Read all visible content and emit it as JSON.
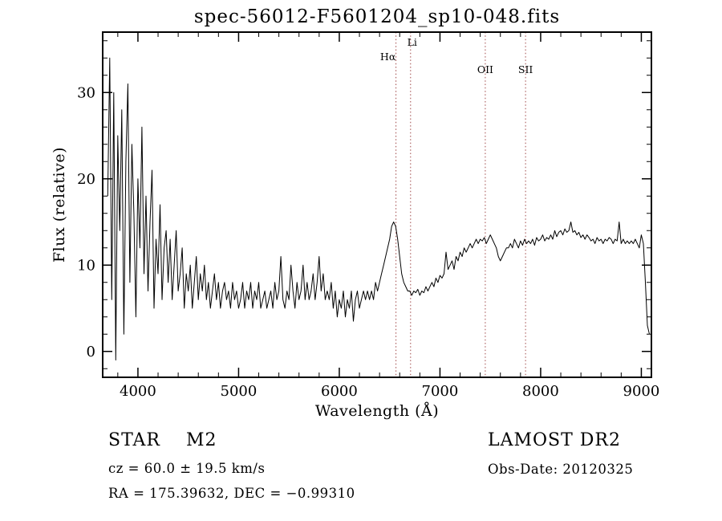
{
  "chart_data": {
    "type": "line",
    "title": "spec-56012-F5601204_sp10-048.fits",
    "xlabel": "Wavelength (Å)",
    "ylabel": "Flux (relative)",
    "xlim": [
      3650,
      9100
    ],
    "ylim": [
      -3,
      37
    ],
    "xticks": [
      4000,
      5000,
      6000,
      7000,
      8000,
      9000
    ],
    "yticks": [
      0,
      10,
      20,
      30
    ],
    "x_minor_step": 200,
    "y_minor_step": 2,
    "grid": false,
    "line_color": "#000000",
    "axis_color": "#000000",
    "reference_line_color": "#a04848",
    "reference_lines": [
      {
        "label": "Hα",
        "wavelength": 6563,
        "level": 2,
        "dx": -10
      },
      {
        "label": "Li",
        "wavelength": 6708,
        "level": 1,
        "dx": 2
      },
      {
        "label": "OII",
        "wavelength": 7450,
        "level": 3,
        "dx": 0
      },
      {
        "label": "SII",
        "wavelength": 7850,
        "level": 3,
        "dx": 0
      }
    ],
    "x": [
      3700,
      3720,
      3740,
      3760,
      3780,
      3800,
      3820,
      3840,
      3860,
      3880,
      3900,
      3920,
      3940,
      3960,
      3980,
      4000,
      4020,
      4040,
      4060,
      4080,
      4100,
      4120,
      4140,
      4160,
      4180,
      4200,
      4220,
      4240,
      4260,
      4280,
      4300,
      4320,
      4340,
      4360,
      4380,
      4400,
      4420,
      4440,
      4460,
      4480,
      4500,
      4520,
      4540,
      4560,
      4580,
      4600,
      4620,
      4640,
      4660,
      4680,
      4700,
      4720,
      4740,
      4760,
      4780,
      4800,
      4820,
      4840,
      4860,
      4880,
      4900,
      4920,
      4940,
      4960,
      4980,
      5000,
      5020,
      5040,
      5060,
      5080,
      5100,
      5120,
      5140,
      5160,
      5180,
      5200,
      5220,
      5240,
      5260,
      5280,
      5300,
      5320,
      5340,
      5360,
      5380,
      5400,
      5420,
      5440,
      5460,
      5480,
      5500,
      5520,
      5540,
      5560,
      5580,
      5600,
      5620,
      5640,
      5660,
      5680,
      5700,
      5720,
      5740,
      5760,
      5780,
      5800,
      5820,
      5840,
      5860,
      5880,
      5900,
      5920,
      5940,
      5960,
      5980,
      6000,
      6020,
      6040,
      6060,
      6080,
      6100,
      6120,
      6140,
      6160,
      6180,
      6200,
      6220,
      6240,
      6260,
      6280,
      6300,
      6320,
      6340,
      6360,
      6380,
      6400,
      6420,
      6440,
      6460,
      6480,
      6500,
      6520,
      6540,
      6560,
      6580,
      6600,
      6620,
      6640,
      6660,
      6680,
      6700,
      6720,
      6740,
      6760,
      6780,
      6800,
      6820,
      6840,
      6860,
      6880,
      6900,
      6920,
      6940,
      6960,
      6980,
      7000,
      7020,
      7040,
      7060,
      7080,
      7100,
      7120,
      7140,
      7160,
      7180,
      7200,
      7220,
      7240,
      7260,
      7280,
      7300,
      7320,
      7340,
      7360,
      7380,
      7400,
      7420,
      7440,
      7460,
      7480,
      7500,
      7520,
      7540,
      7560,
      7580,
      7600,
      7620,
      7640,
      7660,
      7680,
      7700,
      7720,
      7740,
      7760,
      7780,
      7800,
      7820,
      7840,
      7860,
      7880,
      7900,
      7920,
      7940,
      7960,
      7980,
      8000,
      8020,
      8040,
      8060,
      8080,
      8100,
      8120,
      8140,
      8160,
      8180,
      8200,
      8220,
      8240,
      8260,
      8280,
      8300,
      8320,
      8340,
      8360,
      8380,
      8400,
      8420,
      8440,
      8460,
      8480,
      8500,
      8520,
      8540,
      8560,
      8580,
      8600,
      8620,
      8640,
      8660,
      8680,
      8700,
      8720,
      8740,
      8760,
      8780,
      8800,
      8820,
      8840,
      8860,
      8880,
      8900,
      8920,
      8940,
      8960,
      8980,
      9000,
      9020,
      9040,
      9060,
      9080
    ],
    "y": [
      18,
      34,
      6,
      30,
      -1,
      25,
      14,
      28,
      2,
      22,
      31,
      8,
      24,
      16,
      4,
      20,
      12,
      26,
      9,
      18,
      7,
      15,
      21,
      5,
      13,
      9,
      17,
      6,
      12,
      14,
      8,
      13,
      6,
      10,
      14,
      7,
      9,
      12,
      5,
      9,
      7,
      10,
      5,
      8,
      11,
      6,
      9,
      7,
      10,
      6,
      8,
      5,
      7,
      9,
      6,
      8,
      5,
      7,
      8,
      6,
      7,
      5,
      8,
      6,
      7,
      5,
      6,
      8,
      5,
      7,
      6,
      8,
      5,
      7,
      6,
      8,
      5,
      6,
      7,
      5,
      6,
      7,
      5,
      8,
      6,
      7,
      11,
      6,
      5,
      7,
      6,
      10,
      7,
      5,
      8,
      6,
      7,
      10,
      6,
      8,
      6,
      7,
      9,
      6,
      8,
      11,
      7,
      9,
      6,
      7,
      6,
      8,
      5,
      7,
      4,
      6,
      5,
      7,
      4,
      6,
      5,
      7,
      3.5,
      6,
      7,
      5,
      6,
      7,
      6,
      7,
      6,
      7,
      6,
      8,
      7,
      8,
      9,
      10,
      11,
      12,
      13,
      14.5,
      15,
      14.5,
      13,
      11,
      9,
      8,
      7.5,
      7,
      7,
      6.5,
      7,
      6.8,
      7.2,
      6.5,
      7,
      6.8,
      7.5,
      7,
      7.5,
      8,
      7.5,
      8.5,
      8,
      8.8,
      8.5,
      9,
      11.5,
      9.5,
      10,
      10.5,
      9.5,
      11,
      10.5,
      11.5,
      11,
      12,
      11.5,
      12,
      12.5,
      12,
      12.5,
      13,
      12.5,
      13,
      12.8,
      13.2,
      12.5,
      13,
      13.5,
      13,
      12.5,
      12,
      11,
      10.5,
      11,
      11.5,
      12,
      12,
      12.5,
      12,
      13,
      12.5,
      12,
      12.8,
      12.3,
      13,
      12.5,
      12.8,
      12.5,
      13,
      12.3,
      13.2,
      12.8,
      13,
      13.5,
      12.8,
      13.2,
      13,
      13.5,
      13,
      14,
      13.3,
      13.8,
      14,
      13.5,
      14.2,
      13.8,
      14,
      15,
      13.8,
      14,
      13.5,
      13.8,
      13.2,
      13.5,
      13,
      13.5,
      13.2,
      12.8,
      13,
      12.5,
      13.2,
      12.8,
      13,
      12.5,
      13,
      12.8,
      13.2,
      13,
      12.5,
      13,
      12.8,
      15,
      12.5,
      13,
      12.5,
      12.8,
      12.5,
      12.8,
      12.5,
      13,
      12.5,
      12,
      13.5,
      12.5,
      8,
      3,
      2
    ]
  },
  "annotations": {
    "star_class": "STAR    M2",
    "survey": "LAMOST DR2",
    "cz": "cz = 60.0 ± 19.5 km/s",
    "obs_date": "Obs-Date: 20120325",
    "coords": "RA = 175.39632, DEC = −0.99310"
  }
}
